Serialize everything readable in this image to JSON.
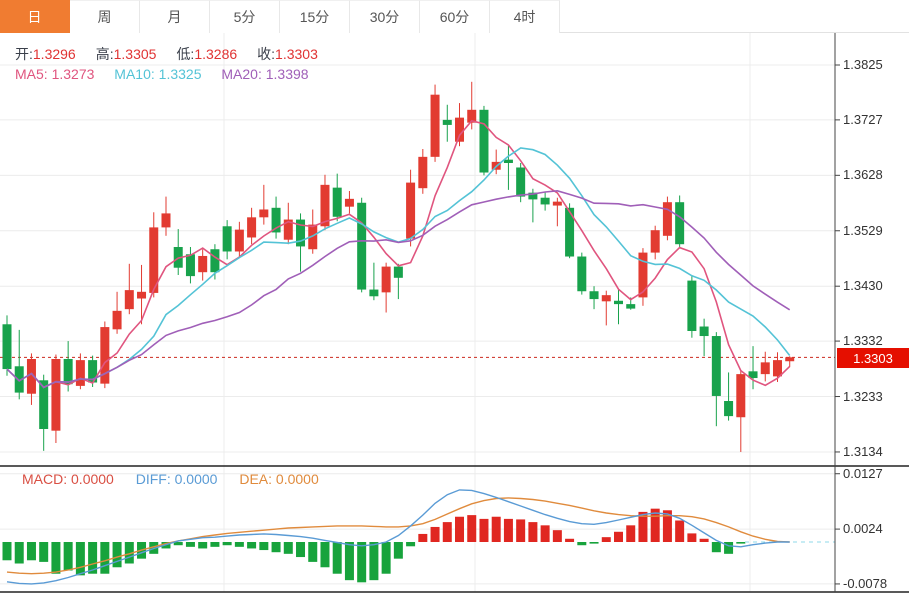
{
  "tabs": [
    {
      "label": "日",
      "active": true
    },
    {
      "label": "周",
      "active": false
    },
    {
      "label": "月",
      "active": false
    },
    {
      "label": "5分",
      "active": false
    },
    {
      "label": "15分",
      "active": false
    },
    {
      "label": "30分",
      "active": false
    },
    {
      "label": "60分",
      "active": false
    },
    {
      "label": "4时",
      "active": false
    }
  ],
  "quote_bar": {
    "open_label": "开:",
    "open": "1.3296",
    "high_label": "高:",
    "high": "1.3305",
    "low_label": "低:",
    "low": "1.3286",
    "close_label": "收:",
    "close": "1.3303"
  },
  "ma_bar": {
    "ma5_label": "MA5:",
    "ma5": "1.3273",
    "ma10_label": "MA10:",
    "ma10": "1.3325",
    "ma20_label": "MA20:",
    "ma20": "1.3398"
  },
  "macd_bar": {
    "macd_label": "MACD:",
    "macd": "0.0000",
    "diff_label": "DIFF:",
    "diff": "0.0000",
    "dea_label": "DEA:",
    "dea": "0.0000"
  },
  "price_tag": "1.3303",
  "colors": {
    "up": "#e23b31",
    "down": "#18a24c",
    "ma5": "#e0557f",
    "ma10": "#54c3d6",
    "ma20": "#a05fb8",
    "diff": "#5a9bd5",
    "dea": "#e08b3d",
    "hist_pos": "#e02721",
    "hist_neg": "#17a33c",
    "tab_accent": "#f07c31",
    "value_red": "#e03333",
    "current_line": "#cc2a1f",
    "tag_bg": "#e50f00",
    "grid": "#ececec",
    "border": "#333333",
    "dash_zero": "#8fd8e8"
  },
  "chart_data": {
    "type": "candlestick",
    "legend": [
      "MA5",
      "MA10",
      "MA20",
      "MACD",
      "DIFF",
      "DEA"
    ],
    "price_axis": {
      "ticks": [
        1.3825,
        1.3727,
        1.3628,
        1.3529,
        1.343,
        1.3332,
        1.3233,
        1.3134
      ],
      "min": 1.3134,
      "max": 1.3825
    },
    "macd_axis": {
      "ticks": [
        0.0127,
        0.0024,
        -0.0078
      ]
    },
    "current_price": 1.3303,
    "last_ohlc": {
      "open": 1.3296,
      "high": 1.3305,
      "low": 1.3286,
      "close": 1.3303
    },
    "ma_values": {
      "ma5": 1.3273,
      "ma10": 1.3325,
      "ma20": 1.3398
    },
    "ma_periods": [
      5,
      10,
      20
    ],
    "candles": [
      [
        1.3362,
        1.3378,
        1.327,
        1.3282
      ],
      [
        1.3287,
        1.3352,
        1.3228,
        1.324
      ],
      [
        1.3238,
        1.331,
        1.3218,
        1.33
      ],
      [
        1.3262,
        1.3272,
        1.3136,
        1.3175
      ],
      [
        1.3172,
        1.3308,
        1.315,
        1.33
      ],
      [
        1.33,
        1.3332,
        1.3242,
        1.3255
      ],
      [
        1.3252,
        1.331,
        1.3246,
        1.3298
      ],
      [
        1.3298,
        1.3306,
        1.325,
        1.3258
      ],
      [
        1.3256,
        1.3367,
        1.3248,
        1.3357
      ],
      [
        1.3353,
        1.342,
        1.3345,
        1.3386
      ],
      [
        1.3389,
        1.347,
        1.338,
        1.3423
      ],
      [
        1.3408,
        1.3468,
        1.3362,
        1.342
      ],
      [
        1.3418,
        1.3562,
        1.341,
        1.3535
      ],
      [
        1.3535,
        1.359,
        1.352,
        1.356
      ],
      [
        1.35,
        1.3532,
        1.345,
        1.3463
      ],
      [
        1.3487,
        1.35,
        1.3435,
        1.3448
      ],
      [
        1.3455,
        1.3496,
        1.344,
        1.3484
      ],
      [
        1.3496,
        1.3505,
        1.3442,
        1.3455
      ],
      [
        1.3537,
        1.3548,
        1.3478,
        1.3492
      ],
      [
        1.3492,
        1.3545,
        1.3482,
        1.3531
      ],
      [
        1.3517,
        1.357,
        1.3505,
        1.3553
      ],
      [
        1.3553,
        1.3611,
        1.354,
        1.3567
      ],
      [
        1.357,
        1.359,
        1.3515,
        1.3526
      ],
      [
        1.3513,
        1.3579,
        1.3505,
        1.3549
      ],
      [
        1.3549,
        1.356,
        1.3456,
        1.3501
      ],
      [
        1.3496,
        1.3567,
        1.3488,
        1.354
      ],
      [
        1.3537,
        1.3629,
        1.353,
        1.3611
      ],
      [
        1.3606,
        1.3631,
        1.3546,
        1.3554
      ],
      [
        1.3572,
        1.36,
        1.356,
        1.3586
      ],
      [
        1.3579,
        1.3588,
        1.3419,
        1.3424
      ],
      [
        1.3424,
        1.3472,
        1.3405,
        1.3412
      ],
      [
        1.3419,
        1.3472,
        1.3383,
        1.3465
      ],
      [
        1.3465,
        1.347,
        1.3407,
        1.3445
      ],
      [
        1.3515,
        1.3638,
        1.3501,
        1.3615
      ],
      [
        1.3605,
        1.3675,
        1.3595,
        1.3661
      ],
      [
        1.3661,
        1.379,
        1.3652,
        1.3772
      ],
      [
        1.3727,
        1.3754,
        1.3688,
        1.3718
      ],
      [
        1.3688,
        1.3757,
        1.368,
        1.3731
      ],
      [
        1.3722,
        1.3795,
        1.371,
        1.3745
      ],
      [
        1.3745,
        1.3752,
        1.3628,
        1.3633
      ],
      [
        1.3638,
        1.3674,
        1.363,
        1.3652
      ],
      [
        1.3656,
        1.3683,
        1.3602,
        1.365
      ],
      [
        1.3642,
        1.365,
        1.358,
        1.359
      ],
      [
        1.3597,
        1.3604,
        1.3544,
        1.3585
      ],
      [
        1.3588,
        1.3598,
        1.3565,
        1.3576
      ],
      [
        1.3574,
        1.3588,
        1.3537,
        1.3581
      ],
      [
        1.357,
        1.3578,
        1.348,
        1.3483
      ],
      [
        1.3483,
        1.349,
        1.3415,
        1.3421
      ],
      [
        1.3421,
        1.343,
        1.3389,
        1.3407
      ],
      [
        1.3403,
        1.3422,
        1.336,
        1.3414
      ],
      [
        1.3404,
        1.3425,
        1.3362,
        1.3398
      ],
      [
        1.3398,
        1.341,
        1.3388,
        1.339
      ],
      [
        1.341,
        1.3498,
        1.3395,
        1.349
      ],
      [
        1.349,
        1.3538,
        1.3478,
        1.353
      ],
      [
        1.352,
        1.359,
        1.3512,
        1.358
      ],
      [
        1.358,
        1.3592,
        1.3498,
        1.3505
      ],
      [
        1.344,
        1.3448,
        1.3338,
        1.335
      ],
      [
        1.3358,
        1.3372,
        1.3305,
        1.3341
      ],
      [
        1.3341,
        1.3348,
        1.318,
        1.3234
      ],
      [
        1.3225,
        1.3276,
        1.319,
        1.3198
      ],
      [
        1.3196,
        1.328,
        1.3134,
        1.3273
      ],
      [
        1.3278,
        1.3323,
        1.3246,
        1.3266
      ],
      [
        1.3273,
        1.3313,
        1.326,
        1.3294
      ],
      [
        1.3269,
        1.3312,
        1.3259,
        1.3298
      ],
      [
        1.3296,
        1.3305,
        1.3286,
        1.3303
      ]
    ],
    "macd": {
      "hist": [
        -0.0034,
        -0.004,
        -0.0034,
        -0.0037,
        -0.0059,
        -0.0053,
        -0.0062,
        -0.0059,
        -0.0059,
        -0.0047,
        -0.004,
        -0.0031,
        -0.0022,
        -0.0012,
        -0.0006,
        -0.0009,
        -0.0012,
        -0.0009,
        -0.0006,
        -0.0009,
        -0.0012,
        -0.0015,
        -0.0019,
        -0.0022,
        -0.0028,
        -0.0037,
        -0.0047,
        -0.0059,
        -0.0071,
        -0.0075,
        -0.0071,
        -0.0059,
        -0.0031,
        -0.0008,
        0.0015,
        0.0028,
        0.0037,
        0.0047,
        0.005,
        0.0043,
        0.0047,
        0.0043,
        0.0042,
        0.0037,
        0.0031,
        0.0022,
        0.0006,
        -0.0006,
        -0.0003,
        0.0009,
        0.0019,
        0.0031,
        0.0056,
        0.0062,
        0.0059,
        0.004,
        0.0016,
        0.0006,
        -0.0019,
        -0.0022,
        -0.0003,
        0.0,
        0.0,
        0.0,
        0.0
      ],
      "diff": [
        -0.0074,
        -0.0077,
        -0.0078,
        -0.0076,
        -0.0072,
        -0.0066,
        -0.0059,
        -0.0052,
        -0.0044,
        -0.0036,
        -0.0028,
        -0.002,
        -0.0012,
        -0.0005,
        0.0002,
        0.0005,
        0.0008,
        0.0009,
        0.0011,
        0.0013,
        0.0014,
        0.0015,
        0.0014,
        0.0012,
        0.001,
        0.0007,
        0.0003,
        -0.0001,
        -0.0005,
        -0.0007,
        -0.0005,
        0.0,
        0.0012,
        0.003,
        0.005,
        0.0072,
        0.0088,
        0.0097,
        0.0096,
        0.009,
        0.0083,
        0.0075,
        0.0067,
        0.0059,
        0.0051,
        0.0044,
        0.0038,
        0.0034,
        0.0033,
        0.0036,
        0.0041,
        0.0046,
        0.0051,
        0.0054,
        0.0052,
        0.0044,
        0.0031,
        0.0017,
        0.0003,
        -0.0007,
        -0.0009,
        -0.0005,
        -0.0002,
        0.0,
        0.0
      ],
      "dea": [
        -0.0056,
        -0.0058,
        -0.0059,
        -0.0058,
        -0.0056,
        -0.0052,
        -0.0047,
        -0.0041,
        -0.0035,
        -0.0028,
        -0.0022,
        -0.0015,
        -0.0009,
        -0.0003,
        0.0002,
        0.0006,
        0.001,
        0.0013,
        0.0016,
        0.0018,
        0.002,
        0.0022,
        0.0024,
        0.0026,
        0.0027,
        0.0028,
        0.0029,
        0.003,
        0.003,
        0.003,
        0.0029,
        0.0028,
        0.0028,
        0.003,
        0.0034,
        0.0042,
        0.0052,
        0.0062,
        0.0071,
        0.0077,
        0.0081,
        0.0082,
        0.0081,
        0.0079,
        0.0076,
        0.0072,
        0.0068,
        0.0063,
        0.0058,
        0.0054,
        0.0051,
        0.0049,
        0.0048,
        0.0048,
        0.0049,
        0.0049,
        0.0047,
        0.0043,
        0.0036,
        0.0028,
        0.0019,
        0.0011,
        0.0005,
        0.0001,
        0.0
      ]
    }
  }
}
